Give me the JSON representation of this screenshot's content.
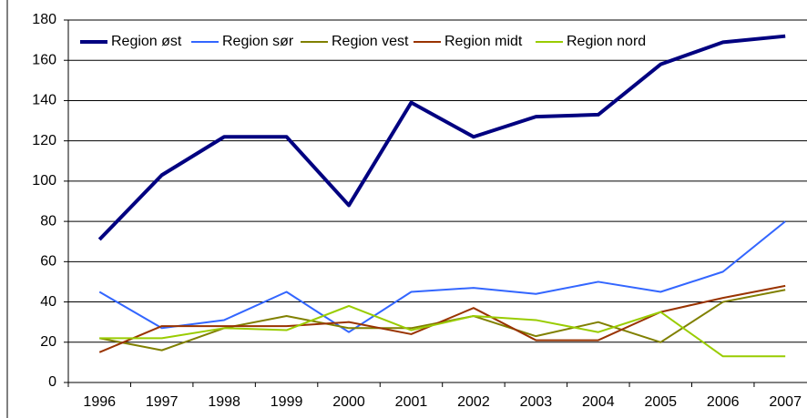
{
  "chart_data": {
    "type": "line",
    "categories": [
      "1996",
      "1997",
      "1998",
      "1999",
      "2000",
      "2001",
      "2002",
      "2003",
      "2004",
      "2005",
      "2006",
      "2007"
    ],
    "series": [
      {
        "name": "Region øst",
        "color": "#000080",
        "values": [
          71,
          103,
          122,
          122,
          88,
          139,
          122,
          132,
          133,
          158,
          169,
          172
        ]
      },
      {
        "name": "Region sør",
        "color": "#3366ff",
        "values": [
          45,
          27,
          31,
          45,
          25,
          45,
          47,
          44,
          50,
          45,
          55,
          80
        ]
      },
      {
        "name": "Region vest",
        "color": "#808000",
        "values": [
          22,
          16,
          27,
          33,
          27,
          27,
          33,
          23,
          30,
          20,
          40,
          46
        ]
      },
      {
        "name": "Region midt",
        "color": "#993300",
        "values": [
          15,
          28,
          28,
          28,
          30,
          24,
          37,
          21,
          21,
          35,
          42,
          48
        ]
      },
      {
        "name": "Region nord",
        "color": "#99cc00",
        "values": [
          22,
          22,
          27,
          26,
          38,
          26,
          33,
          31,
          25,
          35,
          13,
          13
        ]
      }
    ],
    "ylim": [
      0,
      180
    ],
    "yticks": [
      0,
      20,
      40,
      60,
      80,
      100,
      120,
      140,
      160,
      180
    ],
    "grid": true,
    "legend": "top-left"
  }
}
